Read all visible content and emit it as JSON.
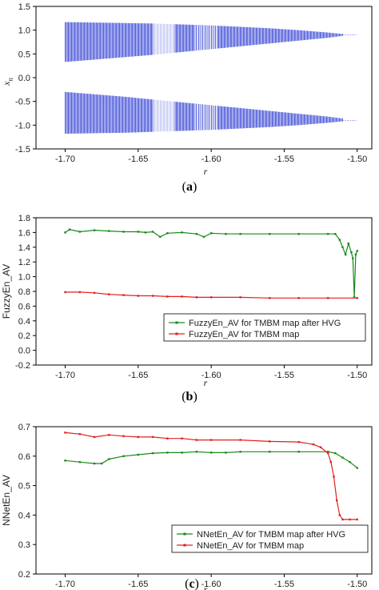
{
  "chart_data": [
    {
      "panel": "a",
      "type": "scatter",
      "caption_letter": "a",
      "xlabel": "r",
      "ylabel": "x",
      "ylabel_sub": "n",
      "xlim": [
        -1.72,
        -1.49
      ],
      "ylim": [
        -1.5,
        1.5
      ],
      "xticks": [
        -1.7,
        -1.65,
        -1.6,
        -1.55,
        -1.5
      ],
      "xtick_labels": [
        "-1.70",
        "-1.65",
        "-1.60",
        "-1.55",
        "-1.50"
      ],
      "yticks": [
        -1.5,
        -1.0,
        -0.5,
        0.0,
        0.5,
        1.0,
        1.5
      ],
      "ytick_labels": [
        "-1.5",
        "-1.0",
        "-0.5",
        "0.0",
        "0.5",
        "1.0",
        "1.5"
      ],
      "series": [
        {
          "color": "#1f2fd0",
          "bands": [
            {
              "x": [
                -1.7,
                -1.68,
                -1.66,
                -1.64,
                -1.62,
                -1.6,
                -1.58,
                -1.56,
                -1.54,
                -1.52,
                -1.51
              ],
              "top": [
                1.17,
                1.16,
                1.15,
                1.14,
                1.12,
                1.1,
                1.07,
                1.04,
                1.0,
                0.95,
                0.92
              ],
              "bottom": [
                0.33,
                0.38,
                0.43,
                0.48,
                0.54,
                0.6,
                0.66,
                0.72,
                0.78,
                0.84,
                0.88
              ]
            },
            {
              "x": [
                -1.7,
                -1.68,
                -1.66,
                -1.64,
                -1.62,
                -1.6,
                -1.58,
                -1.56,
                -1.54,
                -1.52,
                -1.51
              ],
              "top": [
                -0.3,
                -0.35,
                -0.4,
                -0.46,
                -0.52,
                -0.58,
                -0.64,
                -0.7,
                -0.76,
                -0.82,
                -0.86
              ],
              "bottom": [
                -1.18,
                -1.17,
                -1.16,
                -1.14,
                -1.12,
                -1.1,
                -1.07,
                -1.04,
                -1.0,
                -0.95,
                -0.92
              ]
            }
          ],
          "tail_x": [
            -1.51,
            -1.5
          ],
          "tail_y": [
            0.9,
            -0.9
          ]
        }
      ]
    },
    {
      "panel": "b",
      "type": "line",
      "caption_letter": "b",
      "xlabel": "r",
      "ylabel": "FuzzyEn_AV",
      "xlim": [
        -1.72,
        -1.49
      ],
      "ylim": [
        -0.2,
        1.8
      ],
      "xticks": [
        -1.7,
        -1.65,
        -1.6,
        -1.55,
        -1.5
      ],
      "xtick_labels": [
        "-1.70",
        "-1.65",
        "-1.60",
        "-1.55",
        "-1.50"
      ],
      "yticks": [
        -0.2,
        0.0,
        0.2,
        0.4,
        0.6,
        0.8,
        1.0,
        1.2,
        1.4,
        1.6,
        1.8
      ],
      "ytick_labels": [
        "-0.2",
        "0.0",
        "0.2",
        "0.4",
        "0.6",
        "0.8",
        "1.0",
        "1.2",
        "1.4",
        "1.6",
        "1.8"
      ],
      "legend_position": "lower-right",
      "series": [
        {
          "name": "FuzzyEn_AV for TMBM map after HVG",
          "color": "#1a8a1a",
          "x": [
            -1.7,
            -1.697,
            -1.69,
            -1.68,
            -1.67,
            -1.66,
            -1.65,
            -1.645,
            -1.64,
            -1.635,
            -1.63,
            -1.62,
            -1.61,
            -1.605,
            -1.6,
            -1.59,
            -1.58,
            -1.56,
            -1.54,
            -1.52,
            -1.515,
            -1.512,
            -1.51,
            -1.508,
            -1.506,
            -1.504,
            -1.503,
            -1.502,
            -1.501,
            -1.5
          ],
          "y": [
            1.6,
            1.64,
            1.61,
            1.63,
            1.62,
            1.61,
            1.61,
            1.6,
            1.61,
            1.54,
            1.59,
            1.6,
            1.58,
            1.54,
            1.59,
            1.58,
            1.58,
            1.58,
            1.58,
            1.58,
            1.58,
            1.5,
            1.4,
            1.3,
            1.45,
            1.33,
            1.25,
            0.72,
            1.3,
            1.35
          ]
        },
        {
          "name": "FuzzyEn_AV for TMBM map",
          "color": "#e02020",
          "x": [
            -1.7,
            -1.69,
            -1.68,
            -1.67,
            -1.66,
            -1.65,
            -1.64,
            -1.63,
            -1.62,
            -1.61,
            -1.6,
            -1.58,
            -1.56,
            -1.54,
            -1.52,
            -1.5
          ],
          "y": [
            0.79,
            0.79,
            0.78,
            0.76,
            0.75,
            0.74,
            0.74,
            0.73,
            0.73,
            0.72,
            0.72,
            0.72,
            0.71,
            0.71,
            0.71,
            0.71
          ]
        }
      ]
    },
    {
      "panel": "c",
      "type": "line",
      "caption_letter": "c",
      "xlabel": "r",
      "ylabel": "NNetEn_AV",
      "xlim": [
        -1.72,
        -1.49
      ],
      "ylim": [
        0.2,
        0.7
      ],
      "xticks": [
        -1.7,
        -1.65,
        -1.6,
        -1.55,
        -1.5
      ],
      "xtick_labels": [
        "-1.70",
        "-1.65",
        "-1.60",
        "-1.55",
        "-1.50"
      ],
      "yticks": [
        0.2,
        0.3,
        0.4,
        0.5,
        0.6,
        0.7
      ],
      "ytick_labels": [
        "0.2",
        "0.3",
        "0.4",
        "0.5",
        "0.6",
        "0.7"
      ],
      "legend_position": "lower-right",
      "series": [
        {
          "name": "NNetEn_AV for TMBM map after HVG",
          "color": "#1a8a1a",
          "x": [
            -1.7,
            -1.69,
            -1.68,
            -1.675,
            -1.67,
            -1.66,
            -1.65,
            -1.64,
            -1.63,
            -1.62,
            -1.61,
            -1.6,
            -1.59,
            -1.58,
            -1.56,
            -1.54,
            -1.52,
            -1.515,
            -1.51,
            -1.505,
            -1.5
          ],
          "y": [
            0.585,
            0.58,
            0.575,
            0.575,
            0.59,
            0.6,
            0.605,
            0.61,
            0.612,
            0.612,
            0.615,
            0.612,
            0.612,
            0.615,
            0.615,
            0.615,
            0.615,
            0.61,
            0.595,
            0.58,
            0.56
          ]
        },
        {
          "name": "NNetEn_AV for TMBM map",
          "color": "#e02020",
          "x": [
            -1.7,
            -1.69,
            -1.68,
            -1.67,
            -1.66,
            -1.65,
            -1.64,
            -1.63,
            -1.62,
            -1.61,
            -1.6,
            -1.58,
            -1.56,
            -1.54,
            -1.53,
            -1.525,
            -1.52,
            -1.518,
            -1.516,
            -1.514,
            -1.512,
            -1.51,
            -1.505,
            -1.5
          ],
          "y": [
            0.68,
            0.675,
            0.665,
            0.672,
            0.668,
            0.665,
            0.665,
            0.66,
            0.66,
            0.655,
            0.655,
            0.655,
            0.65,
            0.648,
            0.64,
            0.63,
            0.61,
            0.58,
            0.53,
            0.45,
            0.4,
            0.385,
            0.385,
            0.385
          ]
        }
      ]
    }
  ]
}
